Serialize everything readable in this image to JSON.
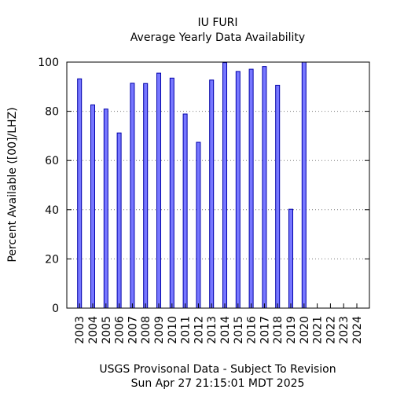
{
  "chart_data": {
    "type": "bar",
    "title": "IU FURI",
    "subtitle": "Average Yearly Data Availability",
    "xlabel": "",
    "ylabel": "Percent Available ([00]/LHZ)",
    "ylim": [
      0,
      100
    ],
    "yticks": [
      0,
      20,
      40,
      60,
      80,
      100
    ],
    "grid": "horizontal dotted",
    "categories": [
      "2003",
      "2004",
      "2005",
      "2006",
      "2007",
      "2008",
      "2009",
      "2010",
      "2011",
      "2012",
      "2013",
      "2014",
      "2015",
      "2016",
      "2017",
      "2018",
      "2019",
      "2020",
      "2021",
      "2022",
      "2023",
      "2024"
    ],
    "values": [
      93.2,
      82.6,
      80.9,
      71.2,
      91.4,
      91.3,
      95.5,
      93.5,
      78.9,
      67.4,
      92.7,
      99.8,
      96.2,
      97.1,
      98.2,
      90.6,
      40.2,
      100,
      null,
      null,
      null,
      null
    ],
    "colors": {
      "bar_fill": "#7777ff",
      "bar_stroke": "#0000aa"
    }
  },
  "footer": {
    "line1": "USGS Provisonal Data - Subject To Revision",
    "line2": "Sun Apr 27 21:15:01 MDT 2025"
  }
}
